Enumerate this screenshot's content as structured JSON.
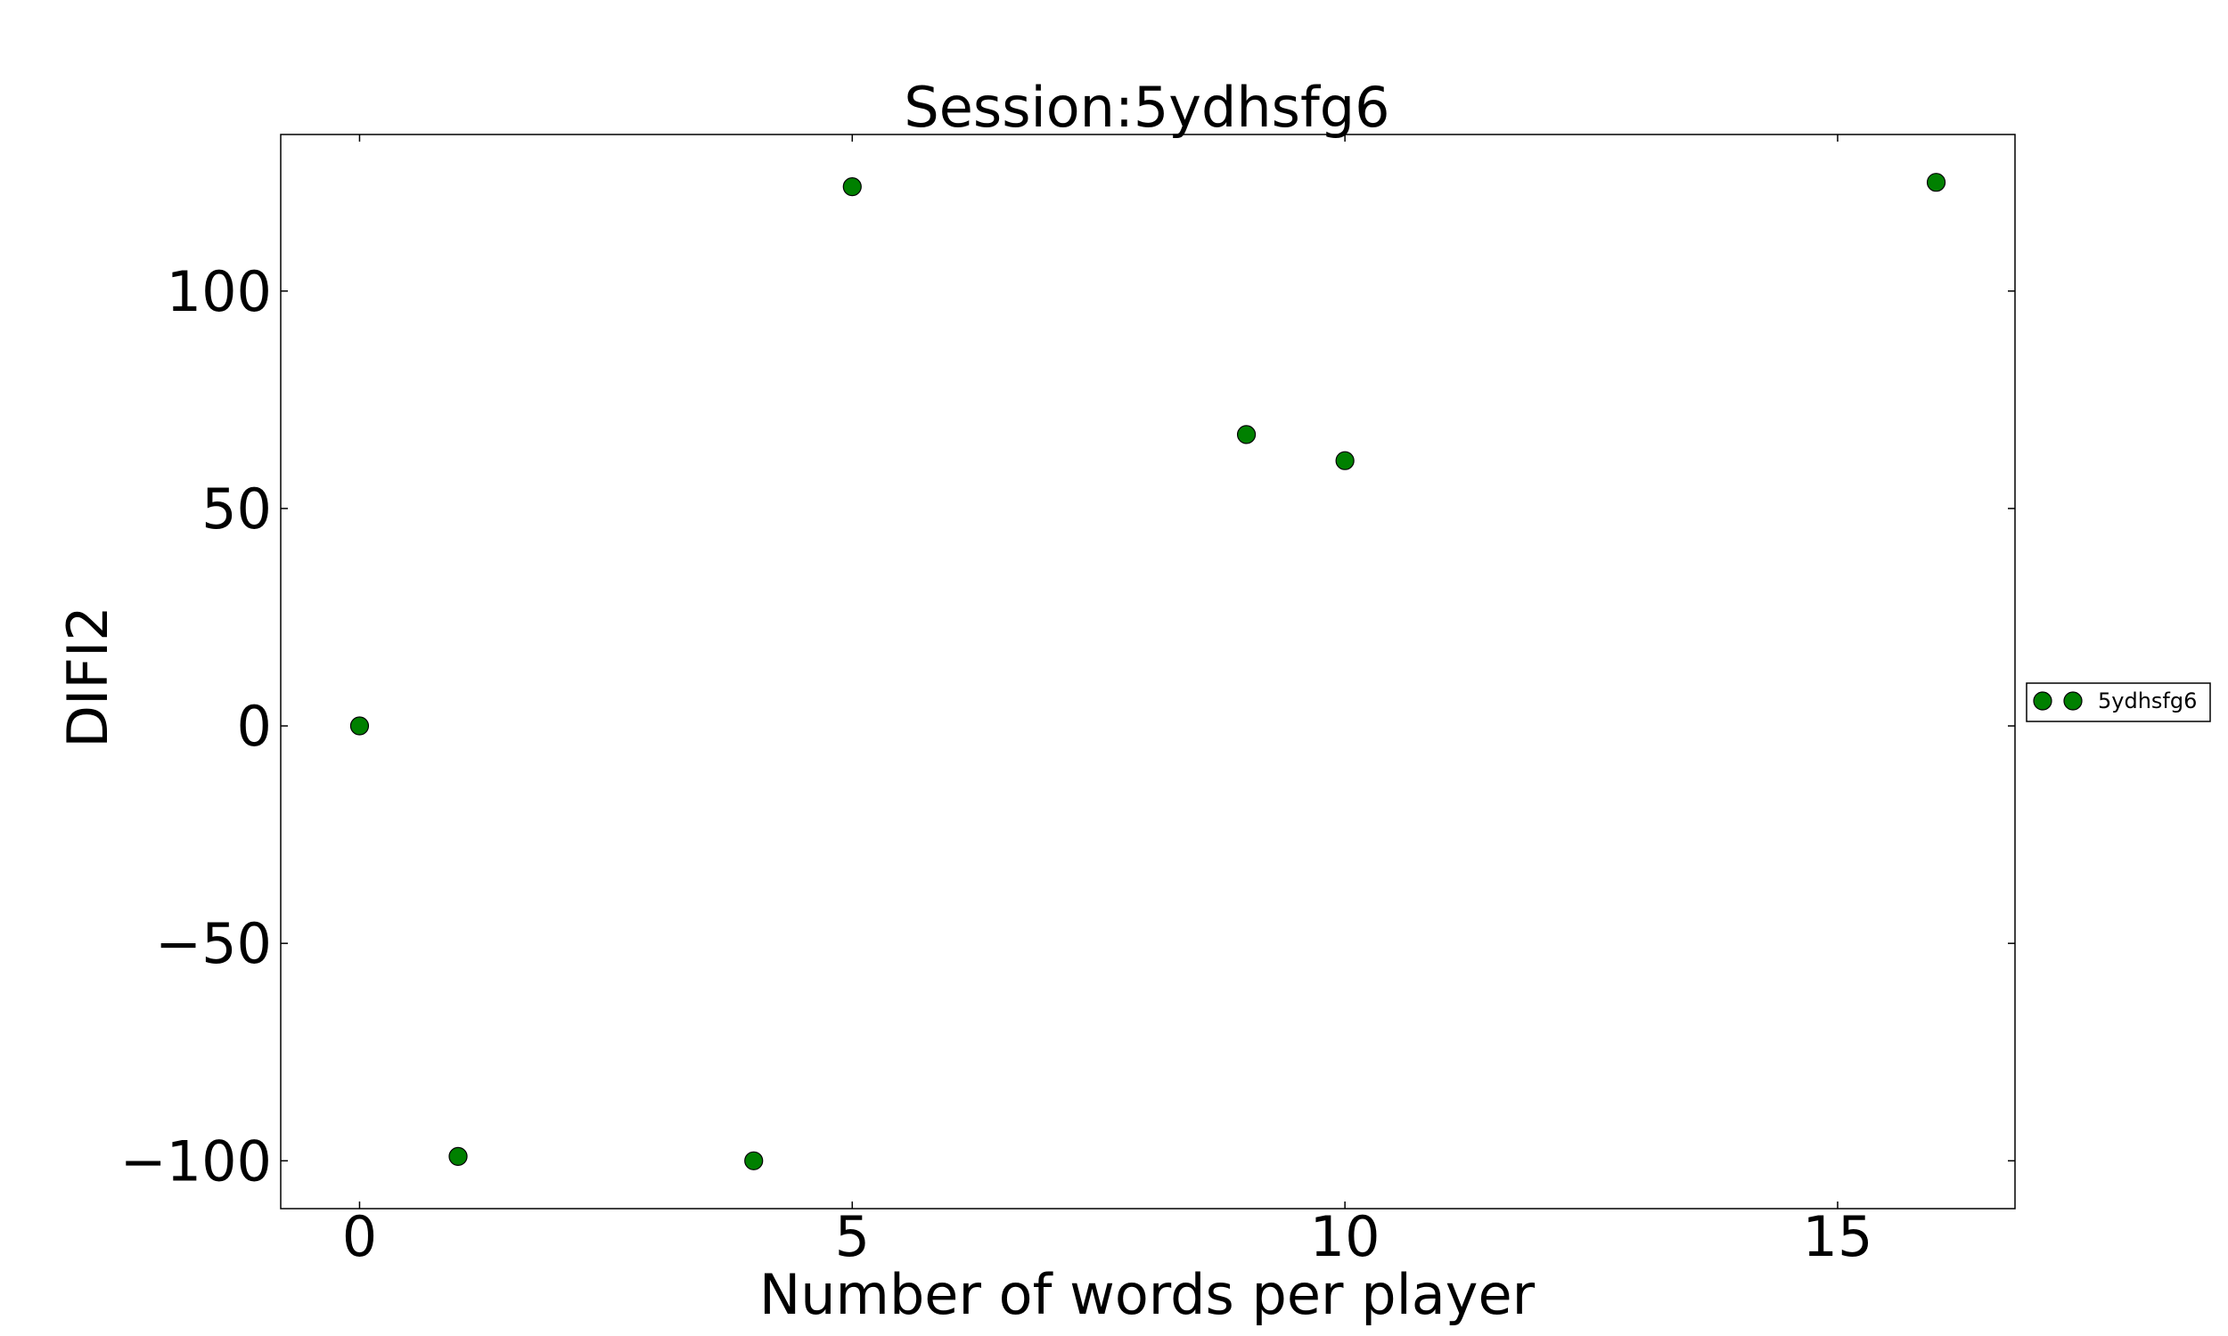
{
  "chart_data": {
    "type": "scatter",
    "title": "Session:5ydhsfg6",
    "xlabel": "Number of words per player",
    "ylabel": "DIFI2",
    "xlim": [
      -0.8,
      16.8
    ],
    "ylim": [
      -111,
      136
    ],
    "x_ticks": [
      0,
      5,
      10,
      15
    ],
    "x_tick_labels": [
      "0",
      "5",
      "10",
      "15"
    ],
    "y_ticks": [
      -100,
      -50,
      0,
      50,
      100
    ],
    "y_tick_labels": [
      "−100",
      "−50",
      "0",
      "50",
      "100"
    ],
    "grid": false,
    "legend_position": "right, outside plot",
    "series": [
      {
        "name": "5ydhsfg6",
        "color": "#008000",
        "marker": "circle",
        "points": [
          {
            "x": 0,
            "y": 0
          },
          {
            "x": 1,
            "y": -99
          },
          {
            "x": 4,
            "y": -100
          },
          {
            "x": 5,
            "y": 124
          },
          {
            "x": 9,
            "y": 67
          },
          {
            "x": 10,
            "y": 61
          },
          {
            "x": 16,
            "y": 125
          }
        ]
      }
    ]
  }
}
